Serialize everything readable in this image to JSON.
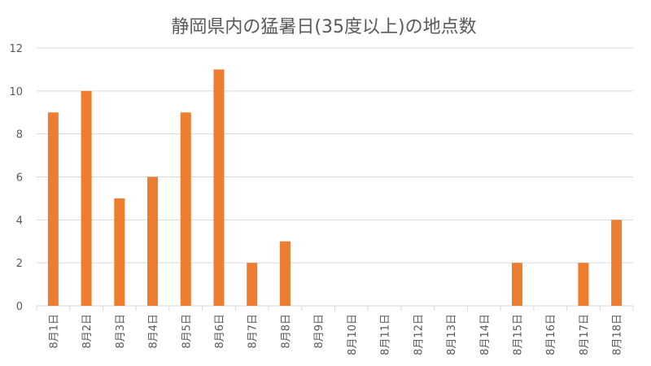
{
  "chart_data": {
    "type": "bar",
    "title": "静岡県内の猛暑日(35度以上)の地点数",
    "xlabel": "",
    "ylabel": "",
    "categories": [
      "8月1日",
      "8月2日",
      "8月3日",
      "8月4日",
      "8月5日",
      "8月6日",
      "8月7日",
      "8月8日",
      "8月9日",
      "8月10日",
      "8月11日",
      "8月12日",
      "8月13日",
      "8月14日",
      "8月15日",
      "8月16日",
      "8月17日",
      "8月18日"
    ],
    "values": [
      9,
      10,
      5,
      6,
      9,
      11,
      2,
      3,
      0,
      0,
      0,
      0,
      0,
      0,
      2,
      0,
      2,
      4
    ],
    "ylim": [
      0,
      12
    ],
    "yticks": [
      0,
      2,
      4,
      6,
      8,
      10,
      12
    ],
    "grid": true,
    "legend": "none",
    "bar_color": "#ED7D31"
  }
}
